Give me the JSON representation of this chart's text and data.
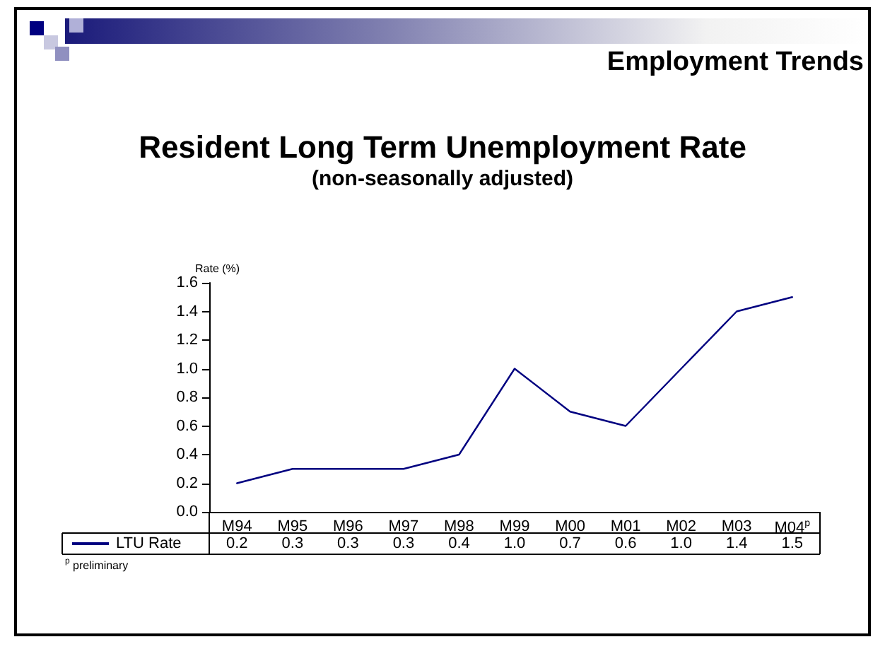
{
  "chart_data": {
    "type": "line",
    "title": "Resident Long Term Unemployment Rate",
    "subtitle": "(non-seasonally adjusted)",
    "ylabel": "Rate (%)",
    "annotations": [
      "Employment Trends",
      "$^{p}$ preliminary"
    ],
    "categories": [
      "M94",
      "M95",
      "M96",
      "M97",
      "M98",
      "M99",
      "M00",
      "M01",
      "M02",
      "M03",
      "M04$^{p}$"
    ],
    "series": [
      {
        "name": "LTU Rate",
        "color": "#000080",
        "values": [
          0.2,
          0.3,
          0.3,
          0.3,
          0.4,
          1.0,
          0.7,
          0.6,
          1.0,
          1.4,
          1.5
        ],
        "value_labels": [
          "0.2",
          "0.3",
          "0.3",
          "0.3",
          "0.4",
          "1.0",
          "0.7",
          "0.6",
          "1.0",
          "1.4",
          "1.5"
        ]
      }
    ],
    "ylim": [
      0,
      1.6
    ],
    "yticks": [
      {
        "value": 0,
        "label": "0.0"
      },
      {
        "value": 0.2,
        "label": "0.2"
      },
      {
        "value": 0.4,
        "label": "0.4"
      },
      {
        "value": 0.6,
        "label": "0.6"
      },
      {
        "value": 0.8,
        "label": "0.8"
      },
      {
        "value": 1,
        "label": "1.0"
      },
      {
        "value": 1.2,
        "label": "1.2"
      },
      {
        "value": 1.4,
        "label": "1.4"
      },
      {
        "value": 1.6,
        "label": "1.6"
      }
    ],
    "grid": false,
    "legend": "bottom left",
    "marker": "none",
    "line_style": "solid"
  }
}
